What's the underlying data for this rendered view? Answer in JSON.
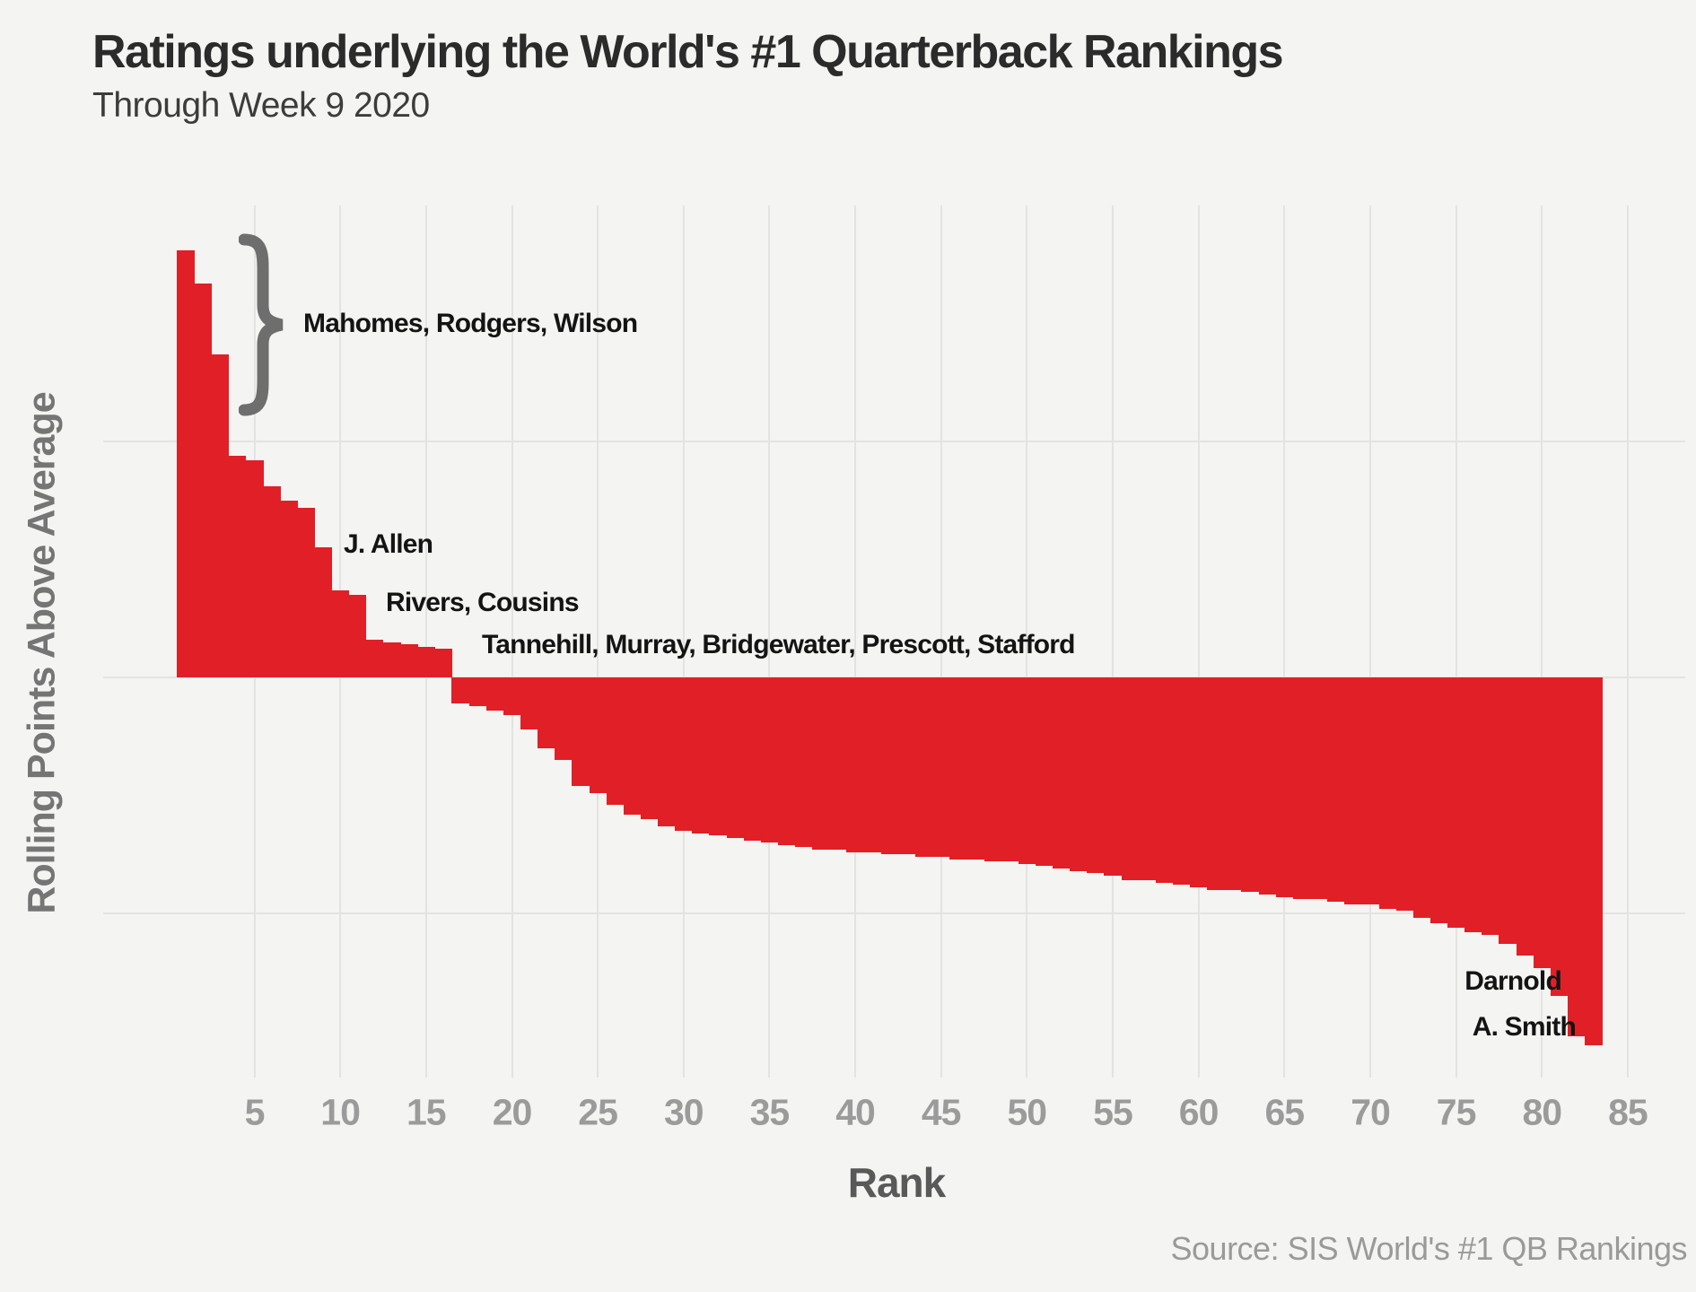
{
  "header": {
    "title": "Ratings underlying the World's #1 Quarterback Rankings",
    "subtitle": "Through Week 9 2020"
  },
  "chart_data": {
    "type": "bar",
    "title": "Ratings underlying the World's #1 Quarterback Rankings",
    "subtitle": "Through Week 9 2020",
    "xlabel": "Rank",
    "ylabel": "Rolling Points Above Average",
    "x_ticks": [
      5,
      10,
      15,
      20,
      25,
      30,
      35,
      40,
      45,
      50,
      55,
      60,
      65,
      70,
      75,
      80,
      85
    ],
    "n_bars": 83,
    "ylim": [
      -1.7,
      2.0
    ],
    "y_gridlines": [
      1,
      0,
      -1
    ],
    "y_axis_numeric_labels_shown": false,
    "grid": true,
    "legend_position": "none",
    "values": [
      1.81,
      1.67,
      1.37,
      0.94,
      0.92,
      0.81,
      0.75,
      0.72,
      0.55,
      0.37,
      0.35,
      0.16,
      0.15,
      0.14,
      0.13,
      0.12,
      -0.11,
      -0.12,
      -0.14,
      -0.16,
      -0.22,
      -0.3,
      -0.35,
      -0.46,
      -0.49,
      -0.54,
      -0.58,
      -0.6,
      -0.63,
      -0.65,
      -0.66,
      -0.67,
      -0.68,
      -0.69,
      -0.7,
      -0.71,
      -0.72,
      -0.73,
      -0.73,
      -0.74,
      -0.74,
      -0.75,
      -0.75,
      -0.76,
      -0.76,
      -0.77,
      -0.77,
      -0.78,
      -0.78,
      -0.79,
      -0.8,
      -0.81,
      -0.82,
      -0.83,
      -0.84,
      -0.86,
      -0.86,
      -0.87,
      -0.88,
      -0.89,
      -0.9,
      -0.9,
      -0.91,
      -0.92,
      -0.93,
      -0.94,
      -0.94,
      -0.95,
      -0.96,
      -0.96,
      -0.98,
      -0.99,
      -1.02,
      -1.04,
      -1.06,
      -1.08,
      -1.09,
      -1.13,
      -1.18,
      -1.23,
      -1.35,
      -1.52,
      -1.56
    ],
    "annotations": [
      {
        "id": "mahomes",
        "text": "Mahomes, Rodgers, Wilson",
        "refers_to_ranks": [
          1,
          2,
          3
        ]
      },
      {
        "id": "allen",
        "text": "J. Allen",
        "refers_to_ranks": [
          9
        ]
      },
      {
        "id": "rivers",
        "text": "Rivers, Cousins",
        "refers_to_ranks": [
          10,
          11
        ]
      },
      {
        "id": "tannehill",
        "text": "Tannehill, Murray, Bridgewater, Prescott, Stafford",
        "refers_to_ranks": [
          12,
          13,
          14,
          15,
          16
        ]
      },
      {
        "id": "darnold",
        "text": "Darnold",
        "refers_to_ranks": [
          82
        ]
      },
      {
        "id": "asmith",
        "text": "A. Smith",
        "refers_to_ranks": [
          83
        ]
      }
    ],
    "source": "Source: SIS World's #1 QB Rankings",
    "colors": {
      "bar": "#e11f26",
      "background": "#f4f4f2",
      "gridline": "#e3e3e1",
      "brace": "#6e6e6e",
      "annotation_text": "#141414",
      "tick_text": "#9b9b9b",
      "axis_title_text": "#595959"
    }
  },
  "footer": {
    "source": "Source: SIS World's #1 QB Rankings"
  }
}
